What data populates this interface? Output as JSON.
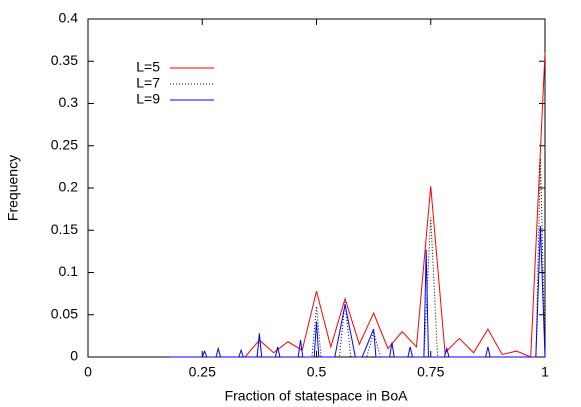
{
  "chart_data": {
    "type": "line",
    "xlabel": "Fraction of statespace in BoA",
    "ylabel": "Frequency",
    "xlim": [
      0,
      1
    ],
    "ylim": [
      0,
      0.4
    ],
    "xticks": [
      0,
      0.25,
      0.5,
      0.75,
      1
    ],
    "yticks": [
      0,
      0.05,
      0.1,
      0.15,
      0.2,
      0.25,
      0.3,
      0.35,
      0.4
    ],
    "legend": "top-left",
    "series": [
      {
        "name": "L=5",
        "color": "#ff0000",
        "dash": "solid",
        "x": [
          0.34375,
          0.375,
          0.40625,
          0.4375,
          0.46875,
          0.5,
          0.53125,
          0.5625,
          0.59375,
          0.625,
          0.65625,
          0.6875,
          0.71875,
          0.75,
          0.78125,
          0.8125,
          0.84375,
          0.875,
          0.90625,
          0.9375,
          0.96875,
          1.0
        ],
        "values": [
          0,
          0.02,
          0.005,
          0.018,
          0.008,
          0.078,
          0.012,
          0.069,
          0.015,
          0.052,
          0.01,
          0.03,
          0.012,
          0.202,
          0.005,
          0.022,
          0.005,
          0.033,
          0.003,
          0.007,
          0,
          0.36
        ]
      },
      {
        "name": "L=7",
        "color": "#000000",
        "dash": "dotted",
        "x": [
          0.3,
          0.37,
          0.375,
          0.38,
          0.49,
          0.5,
          0.51,
          0.55,
          0.5625,
          0.575,
          0.61,
          0.625,
          0.64,
          0.735,
          0.75,
          0.765,
          0.98,
          0.99,
          1.0
        ],
        "values": [
          0,
          0,
          0.025,
          0,
          0,
          0.06,
          0,
          0,
          0.065,
          0,
          0,
          0.03,
          0,
          0,
          0.165,
          0,
          0,
          0.235,
          0
        ]
      },
      {
        "name": "L=9",
        "color": "#0000ff",
        "dash": "solid",
        "x": [
          0.18,
          0.25,
          0.255,
          0.26,
          0.28,
          0.285,
          0.29,
          0.33,
          0.335,
          0.34,
          0.37,
          0.375,
          0.38,
          0.41,
          0.415,
          0.42,
          0.46,
          0.465,
          0.47,
          0.495,
          0.5,
          0.505,
          0.54,
          0.5625,
          0.585,
          0.6,
          0.625,
          0.63,
          0.66,
          0.665,
          0.67,
          0.7,
          0.705,
          0.71,
          0.735,
          0.74,
          0.745,
          0.78,
          0.785,
          0.79,
          0.87,
          0.875,
          0.88,
          0.98,
          0.99,
          1.0
        ],
        "values": [
          0,
          0,
          0.007,
          0,
          0,
          0.01,
          0,
          0,
          0.008,
          0,
          0,
          0.028,
          0,
          0,
          0.012,
          0,
          0,
          0.02,
          0,
          0,
          0.042,
          0,
          0,
          0.062,
          0,
          0,
          0.033,
          0,
          0,
          0.017,
          0,
          0,
          0.012,
          0,
          0,
          0.127,
          0,
          0,
          0.01,
          0,
          0,
          0.012,
          0,
          0,
          0.155,
          0
        ]
      }
    ]
  }
}
